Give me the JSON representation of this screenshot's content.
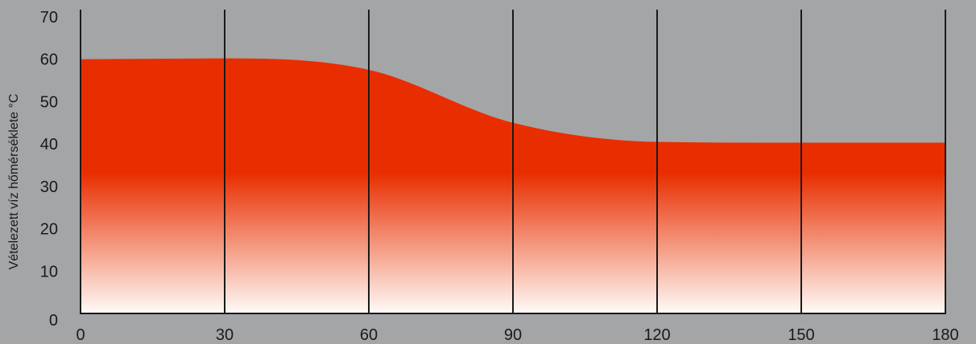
{
  "chart_data": {
    "type": "area",
    "title": "",
    "xlabel": "",
    "ylabel": "Vételezett víz hőmérséklete °C",
    "x": [
      0,
      30,
      60,
      90,
      120,
      150,
      180
    ],
    "y": [
      60,
      60.2,
      57.5,
      45,
      40.5,
      40.3,
      40.3
    ],
    "xticks": [
      "0",
      "30",
      "60",
      "90",
      "120",
      "150",
      "180"
    ],
    "yticks": [
      "0",
      "10",
      "20",
      "30",
      "40",
      "50",
      "60",
      "70"
    ],
    "xlim": [
      0,
      180
    ],
    "ylim": [
      0,
      70
    ],
    "grid": "vertical",
    "fill_colors": {
      "top": "#e82e00",
      "bottom": "#fffbf8"
    },
    "line_color": "#1a1a1a"
  }
}
